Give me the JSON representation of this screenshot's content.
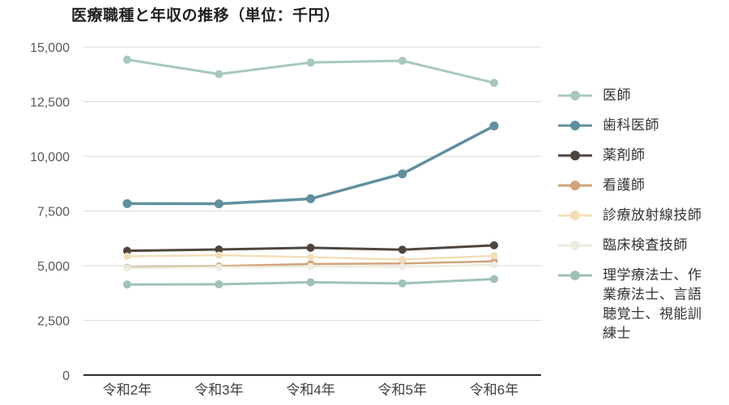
{
  "title": "医療職種と年収の推移（単位：千円）",
  "chart_data": {
    "type": "line",
    "title": "医療職種と年収の推移（単位：千円）",
    "unit": "千円",
    "categories": [
      "令和2年",
      "令和3年",
      "令和4年",
      "令和5年",
      "令和6年"
    ],
    "series": [
      {
        "name": "医師",
        "color": "#a7c7bf",
        "values": [
          14420,
          13760,
          14290,
          14370,
          13360
        ]
      },
      {
        "name": "歯科医師",
        "color": "#60909e",
        "values": [
          7840,
          7830,
          8060,
          9200,
          11390
        ]
      },
      {
        "name": "薬剤師",
        "color": "#4e453d",
        "values": [
          5680,
          5740,
          5820,
          5730,
          5930
        ]
      },
      {
        "name": "看護師",
        "color": "#d2a377",
        "values": [
          4920,
          4980,
          5080,
          5100,
          5200
        ]
      },
      {
        "name": "診療放射線技師",
        "color": "#f2dfb8",
        "values": [
          5430,
          5480,
          5390,
          5280,
          5450
        ]
      },
      {
        "name": "臨床検査技師",
        "color": "#edecdf",
        "values": [
          4890,
          4930,
          4960,
          4950,
          5040
        ]
      },
      {
        "name": "理学療法士、作業療法士、言語聴覚士、視能訓練士",
        "color": "#9ec2ba",
        "values": [
          4140,
          4150,
          4240,
          4190,
          4390
        ]
      }
    ],
    "ylim": [
      0,
      15000
    ],
    "yticks": [
      {
        "value": 0,
        "label": "0"
      },
      {
        "value": 2500,
        "label": "2,500"
      },
      {
        "value": 5000,
        "label": "5,000"
      },
      {
        "value": 7500,
        "label": "7,500"
      },
      {
        "value": 10000,
        "label": "10,000"
      },
      {
        "value": 12500,
        "label": "12,500"
      },
      {
        "value": 15000,
        "label": "15,000"
      }
    ],
    "grid": true,
    "grid_color": "#d9d9d9",
    "axis_color": "#2b2b2b",
    "tick_label_color": "#595959",
    "legend_position": "right"
  }
}
